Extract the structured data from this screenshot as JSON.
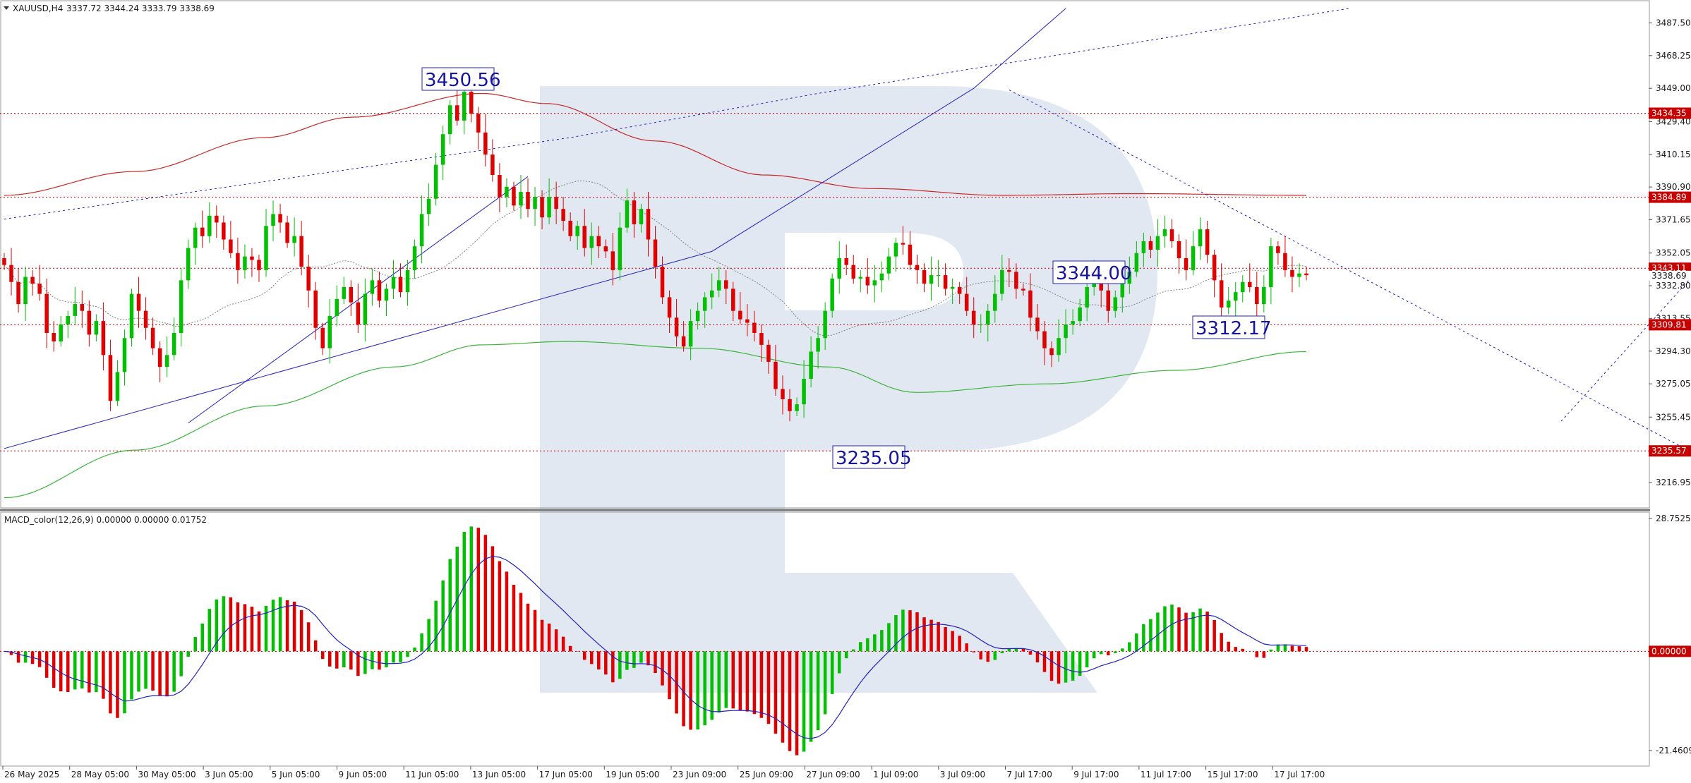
{
  "header": {
    "symbol": "XAUUSD,H4",
    "ohlc": "3337.72 3344.24 3333.79 3338.69",
    "macd_label": "MACD_color(12,26,9) 0.00000 0.00000 0.01752"
  },
  "colors": {
    "bull": "#00c000",
    "bear": "#e00000",
    "ma_slow": "#c82828",
    "ma_mid": "#808080",
    "ma_long": "#3cb43c",
    "level_line": "#c80000",
    "forecast": "#2020c0",
    "signal": "#2020c0",
    "watermark": "#dfe5ef"
  },
  "chart_data": [
    {
      "type": "candlestick",
      "title": "XAUUSD,H4",
      "ylim": [
        3207,
        3496
      ],
      "y_ticks": [
        "3487.50",
        "3468.25",
        "3449.00",
        "3429.40",
        "3410.15",
        "3390.90",
        "3371.65",
        "3352.05",
        "3332.80",
        "3313.55",
        "3294.30",
        "3275.05",
        "3255.45",
        "3216.95"
      ],
      "x_ticks": [
        "26 May 2025",
        "28 May 05:00",
        "30 May 05:00",
        "3 Jun 05:00",
        "5 Jun 05:00",
        "9 Jun 05:00",
        "11 Jun 05:00",
        "13 Jun 05:00",
        "17 Jun 05:00",
        "19 Jun 05:00",
        "23 Jun 09:00",
        "25 Jun 09:00",
        "27 Jun 09:00",
        "1 Jul 09:00",
        "3 Jul 09:00",
        "7 Jul 17:00",
        "9 Jul 17:00",
        "11 Jul 17:00",
        "15 Jul 17:00",
        "17 Jul 17:00"
      ],
      "levels": [
        {
          "value": 3434.35,
          "label": "3434.35"
        },
        {
          "value": 3384.89,
          "label": "3384.89"
        },
        {
          "value": 3343.11,
          "label": "3343.11"
        },
        {
          "value": 3309.81,
          "label": "3309.81"
        },
        {
          "value": 3235.57,
          "label": "3235.57"
        }
      ],
      "current_price": {
        "value": 3338.69,
        "label": "3338.69"
      },
      "annotations": [
        {
          "label": "3450.56",
          "x_bar": 112,
          "y": 3450.56
        },
        {
          "label": "3344.00",
          "x_bar": 241,
          "y": 3344.0
        },
        {
          "label": "3312.17",
          "x_bar": 267,
          "y": 3312.17
        },
        {
          "label": "3235.05",
          "x_bar": 187,
          "y": 3235.05
        }
      ],
      "closes": [
        3345,
        3335,
        3322,
        3338,
        3334,
        3328,
        3305,
        3300,
        3310,
        3315,
        3322,
        3318,
        3304,
        3312,
        3292,
        3265,
        3282,
        3302,
        3328,
        3318,
        3308,
        3296,
        3285,
        3292,
        3305,
        3336,
        3355,
        3367,
        3362,
        3374,
        3370,
        3360,
        3352,
        3342,
        3350,
        3348,
        3342,
        3368,
        3375,
        3370,
        3358,
        3362,
        3344,
        3330,
        3308,
        3296,
        3315,
        3325,
        3332,
        3323,
        3310,
        3328,
        3336,
        3324,
        3331,
        3338,
        3329,
        3342,
        3356,
        3375,
        3384,
        3404,
        3422,
        3439,
        3430,
        3447,
        3434,
        3423,
        3410,
        3398,
        3385,
        3391,
        3380,
        3388,
        3378,
        3385,
        3373,
        3385,
        3378,
        3371,
        3362,
        3368,
        3355,
        3362,
        3356,
        3353,
        3342,
        3367,
        3383,
        3369,
        3378,
        3360,
        3344,
        3326,
        3314,
        3303,
        3297,
        3312,
        3318,
        3326,
        3330,
        3336,
        3331,
        3318,
        3313,
        3311,
        3305,
        3298,
        3288,
        3272,
        3266,
        3259,
        3263,
        3278,
        3294,
        3302,
        3318,
        3337,
        3349,
        3345,
        3337,
        3338,
        3333,
        3336,
        3340,
        3350,
        3358,
        3357,
        3345,
        3342,
        3334,
        3339,
        3339,
        3331,
        3332,
        3328,
        3318,
        3310,
        3310,
        3318,
        3328,
        3342,
        3341,
        3331,
        3330,
        3314,
        3306,
        3296,
        3292,
        3302,
        3310,
        3312,
        3320,
        3332,
        3338,
        3330,
        3318,
        3326,
        3334,
        3341,
        3352,
        3359,
        3354,
        3362,
        3366,
        3359,
        3349,
        3342,
        3356,
        3366,
        3351,
        3336,
        3320,
        3324,
        3329,
        3335,
        3332,
        3322,
        3332,
        3356,
        3352,
        3342,
        3338,
        3340,
        3339
      ]
    },
    {
      "type": "bar",
      "title": "MACD_color(12,26,9) 0.00000 0.00000 0.01752",
      "ylim": [
        -21.46094,
        28.7525
      ],
      "y_ticks": [
        "28.7525",
        "0.00000",
        "-21.46094"
      ]
    }
  ]
}
